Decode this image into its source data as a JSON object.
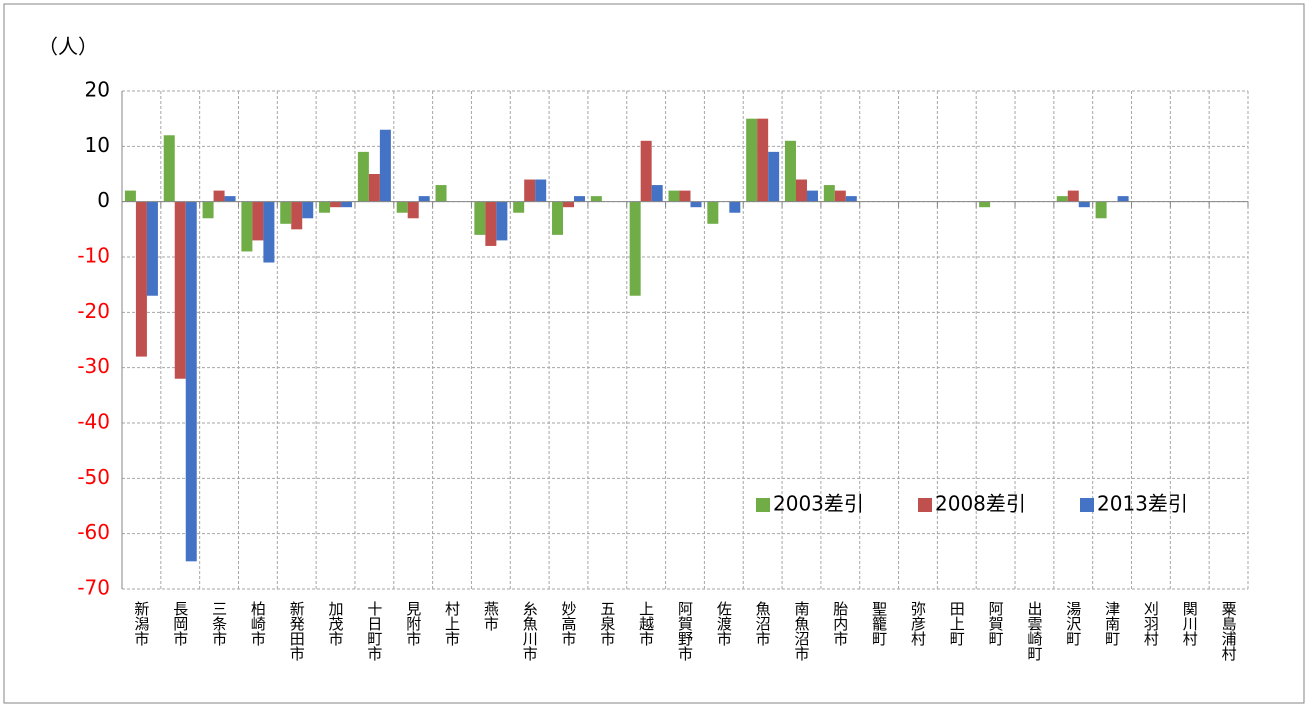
{
  "chart_data": {
    "type": "bar",
    "y_unit": "（人）",
    "categories": [
      "新潟市",
      "長岡市",
      "三条市",
      "柏崎市",
      "新発田市",
      "加茂市",
      "十日町市",
      "見附市",
      "村上市",
      "燕市",
      "糸魚川市",
      "妙高市",
      "五泉市",
      "上越市",
      "阿賀野市",
      "佐渡市",
      "魚沼市",
      "南魚沼市",
      "胎内市",
      "聖籠町",
      "弥彦村",
      "田上町",
      "阿賀町",
      "出雲崎町",
      "湯沢町",
      "津南町",
      "刈羽村",
      "関川村",
      "粟島浦村"
    ],
    "series": [
      {
        "name": "2003差引",
        "color": "#70ad47",
        "values": [
          2,
          12,
          -3,
          -9,
          -4,
          -2,
          9,
          -2,
          3,
          -6,
          -2,
          -6,
          1,
          -17,
          2,
          -4,
          15,
          11,
          3,
          0,
          0,
          0,
          -1,
          0,
          1,
          -3,
          0,
          0,
          0
        ]
      },
      {
        "name": "2008差引",
        "color": "#c0504d",
        "values": [
          -28,
          -32,
          2,
          -7,
          -5,
          -1,
          5,
          -3,
          0,
          -8,
          4,
          -1,
          0,
          11,
          2,
          0,
          15,
          4,
          2,
          0,
          0,
          0,
          0,
          0,
          2,
          0,
          0,
          0,
          0
        ]
      },
      {
        "name": "2013差引",
        "color": "#4472c4",
        "values": [
          -17,
          -65,
          1,
          -11,
          -3,
          -1,
          13,
          1,
          0,
          -7,
          4,
          1,
          0,
          3,
          -1,
          -2,
          9,
          2,
          1,
          0,
          0,
          0,
          0,
          0,
          -1,
          1,
          0,
          0,
          0
        ]
      }
    ],
    "ylim": [
      -70,
      20
    ],
    "yticks": [
      -70,
      -60,
      -50,
      -40,
      -30,
      -20,
      -10,
      0,
      10,
      20
    ],
    "grid": true,
    "negative_tick_color": "#ff0000",
    "legend": "lower-right"
  }
}
